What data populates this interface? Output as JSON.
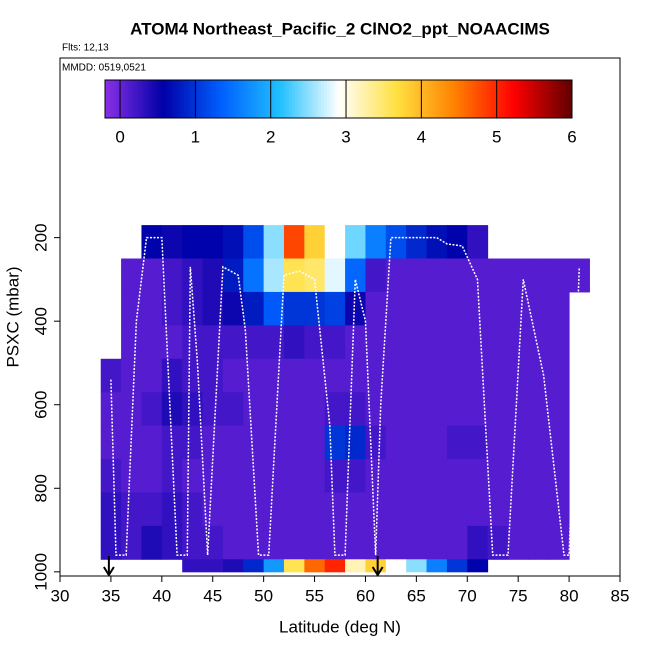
{
  "chart_data": {
    "type": "heatmap",
    "title": "ATOM4 Northeast_Pacific_2 ClNO2_ppt_NOAACIMS",
    "subtitle": "Flts: 12,13",
    "annotation": "MMDD: 0519,0521",
    "xlabel": "Latitude (deg N)",
    "ylabel": "PSXC (mbar)",
    "xlim": [
      30,
      85
    ],
    "xticks": [
      30,
      35,
      40,
      45,
      50,
      55,
      60,
      65,
      70,
      75,
      80,
      85
    ],
    "ylim": [
      1010,
      -230
    ],
    "yticks": [
      200,
      400,
      600,
      800,
      1000
    ],
    "clim": [
      -0.2,
      6
    ],
    "cticks": [
      0,
      1,
      2,
      3,
      4,
      5,
      6
    ],
    "colors": [
      "#8a30e8",
      "#0000a8",
      "#0060ff",
      "#20c0ff",
      "#ffffff",
      "#ffe040",
      "#ff8000",
      "#ff0000",
      "#600000"
    ],
    "x_bins": [
      34,
      36,
      38,
      40,
      42,
      44,
      46,
      48,
      50,
      52,
      54,
      56,
      58,
      60,
      62,
      64,
      66,
      68,
      70,
      72,
      74,
      76,
      78,
      80,
      82
    ],
    "y_bins": [
      170,
      250,
      330,
      410,
      490,
      570,
      650,
      730,
      810,
      890,
      970,
      1000
    ],
    "z": [
      [
        null,
        null,
        0.6,
        0.5,
        0.6,
        0.6,
        0.7,
        1.2,
        2.5,
        4.8,
        3.8,
        2.9,
        2.4,
        1.6,
        1.2,
        0.9,
        0.7,
        0.6,
        0.3,
        null,
        null,
        null,
        null,
        null
      ],
      [
        null,
        0.1,
        0.1,
        0.2,
        0.3,
        0.4,
        0.8,
        1.5,
        2.6,
        3.6,
        3.5,
        2.8,
        1.4,
        0.2,
        0.1,
        0.1,
        0.1,
        0.1,
        0.1,
        0.1,
        0.1,
        0.1,
        0.1,
        0.1
      ],
      [
        null,
        0.1,
        0.1,
        0.2,
        0.3,
        0.4,
        0.5,
        0.8,
        1.3,
        1.0,
        1.0,
        1.1,
        0.5,
        0.1,
        0.1,
        0.1,
        0.1,
        0.1,
        0.1,
        0.1,
        0.1,
        0.1,
        0.1,
        null
      ],
      [
        null,
        0.1,
        0.1,
        0.1,
        0.2,
        0.2,
        0.2,
        0.2,
        0.2,
        0.3,
        0.2,
        0.2,
        0.1,
        0.1,
        0.1,
        0.1,
        0.1,
        0.1,
        0.1,
        0.1,
        0.1,
        0.1,
        0.1,
        null
      ],
      [
        0.2,
        0.1,
        0.1,
        0.3,
        0.2,
        0.2,
        0.1,
        0.1,
        0.1,
        0.1,
        0.1,
        0.1,
        0.1,
        0.1,
        0.1,
        0.1,
        0.1,
        0.1,
        0.1,
        0.1,
        0.1,
        0.1,
        0.1,
        null
      ],
      [
        0.1,
        0.1,
        0.2,
        0.4,
        0.3,
        0.2,
        0.2,
        0.1,
        0.1,
        0.1,
        0.1,
        0.2,
        0.2,
        0.1,
        0.1,
        0.1,
        0.1,
        0.1,
        0.1,
        0.1,
        0.1,
        0.1,
        0.1,
        null
      ],
      [
        0.1,
        0.1,
        0.1,
        0.2,
        0.2,
        0.1,
        0.1,
        0.1,
        0.1,
        0.1,
        0.1,
        1.0,
        0.9,
        0.2,
        0.1,
        0.1,
        0.1,
        0.2,
        0.2,
        0.1,
        0.1,
        0.1,
        0.1,
        null
      ],
      [
        0.2,
        0.1,
        0.1,
        0.2,
        0.1,
        0.1,
        0.1,
        0.1,
        0.1,
        0.1,
        0.1,
        0.2,
        0.2,
        0.1,
        0.1,
        0.1,
        0.1,
        0.1,
        0.1,
        0.1,
        0.1,
        0.1,
        0.1,
        null
      ],
      [
        0.3,
        0.2,
        0.2,
        0.3,
        0.2,
        0.1,
        0.1,
        0.1,
        0.1,
        0.1,
        0.1,
        0.1,
        0.1,
        0.1,
        0.1,
        0.1,
        0.1,
        0.1,
        0.1,
        0.1,
        0.1,
        0.1,
        0.1,
        null
      ],
      [
        0.3,
        0.2,
        0.4,
        0.3,
        0.2,
        0.2,
        0.1,
        0.1,
        0.1,
        0.1,
        0.1,
        0.1,
        0.1,
        0.1,
        0.1,
        0.1,
        0.1,
        0.1,
        0.3,
        0.2,
        0.1,
        0.1,
        0.1,
        null
      ],
      [
        null,
        null,
        null,
        null,
        0.3,
        0.3,
        0.4,
        0.9,
        1.8,
        3.6,
        4.6,
        5.0,
        3.2,
        3.8,
        2.9,
        2.5,
        1.6,
        1.0,
        0.6,
        null,
        null,
        null,
        null,
        null
      ]
    ],
    "track": {
      "color": "#ffffff",
      "x": [
        35,
        35.5,
        36.5,
        37.5,
        38.5,
        40,
        41.5,
        42.5,
        42.8,
        43.5,
        44.5,
        46,
        47.5,
        48.2,
        49.5,
        50.5,
        52,
        53.5,
        55,
        56.5,
        57,
        58,
        59,
        60,
        61,
        61.5,
        62.5,
        67,
        68,
        69.5,
        71,
        72.5,
        74,
        75.5,
        77.5,
        79.5,
        80,
        81
      ],
      "y": [
        540,
        960,
        960,
        400,
        200,
        200,
        960,
        960,
        270,
        500,
        960,
        270,
        290,
        420,
        960,
        960,
        290,
        280,
        300,
        650,
        960,
        960,
        300,
        400,
        960,
        600,
        200,
        200,
        215,
        220,
        300,
        960,
        960,
        300,
        530,
        960,
        960,
        270
      ]
    },
    "arrows_x": [
      34.8,
      61.2
    ]
  }
}
